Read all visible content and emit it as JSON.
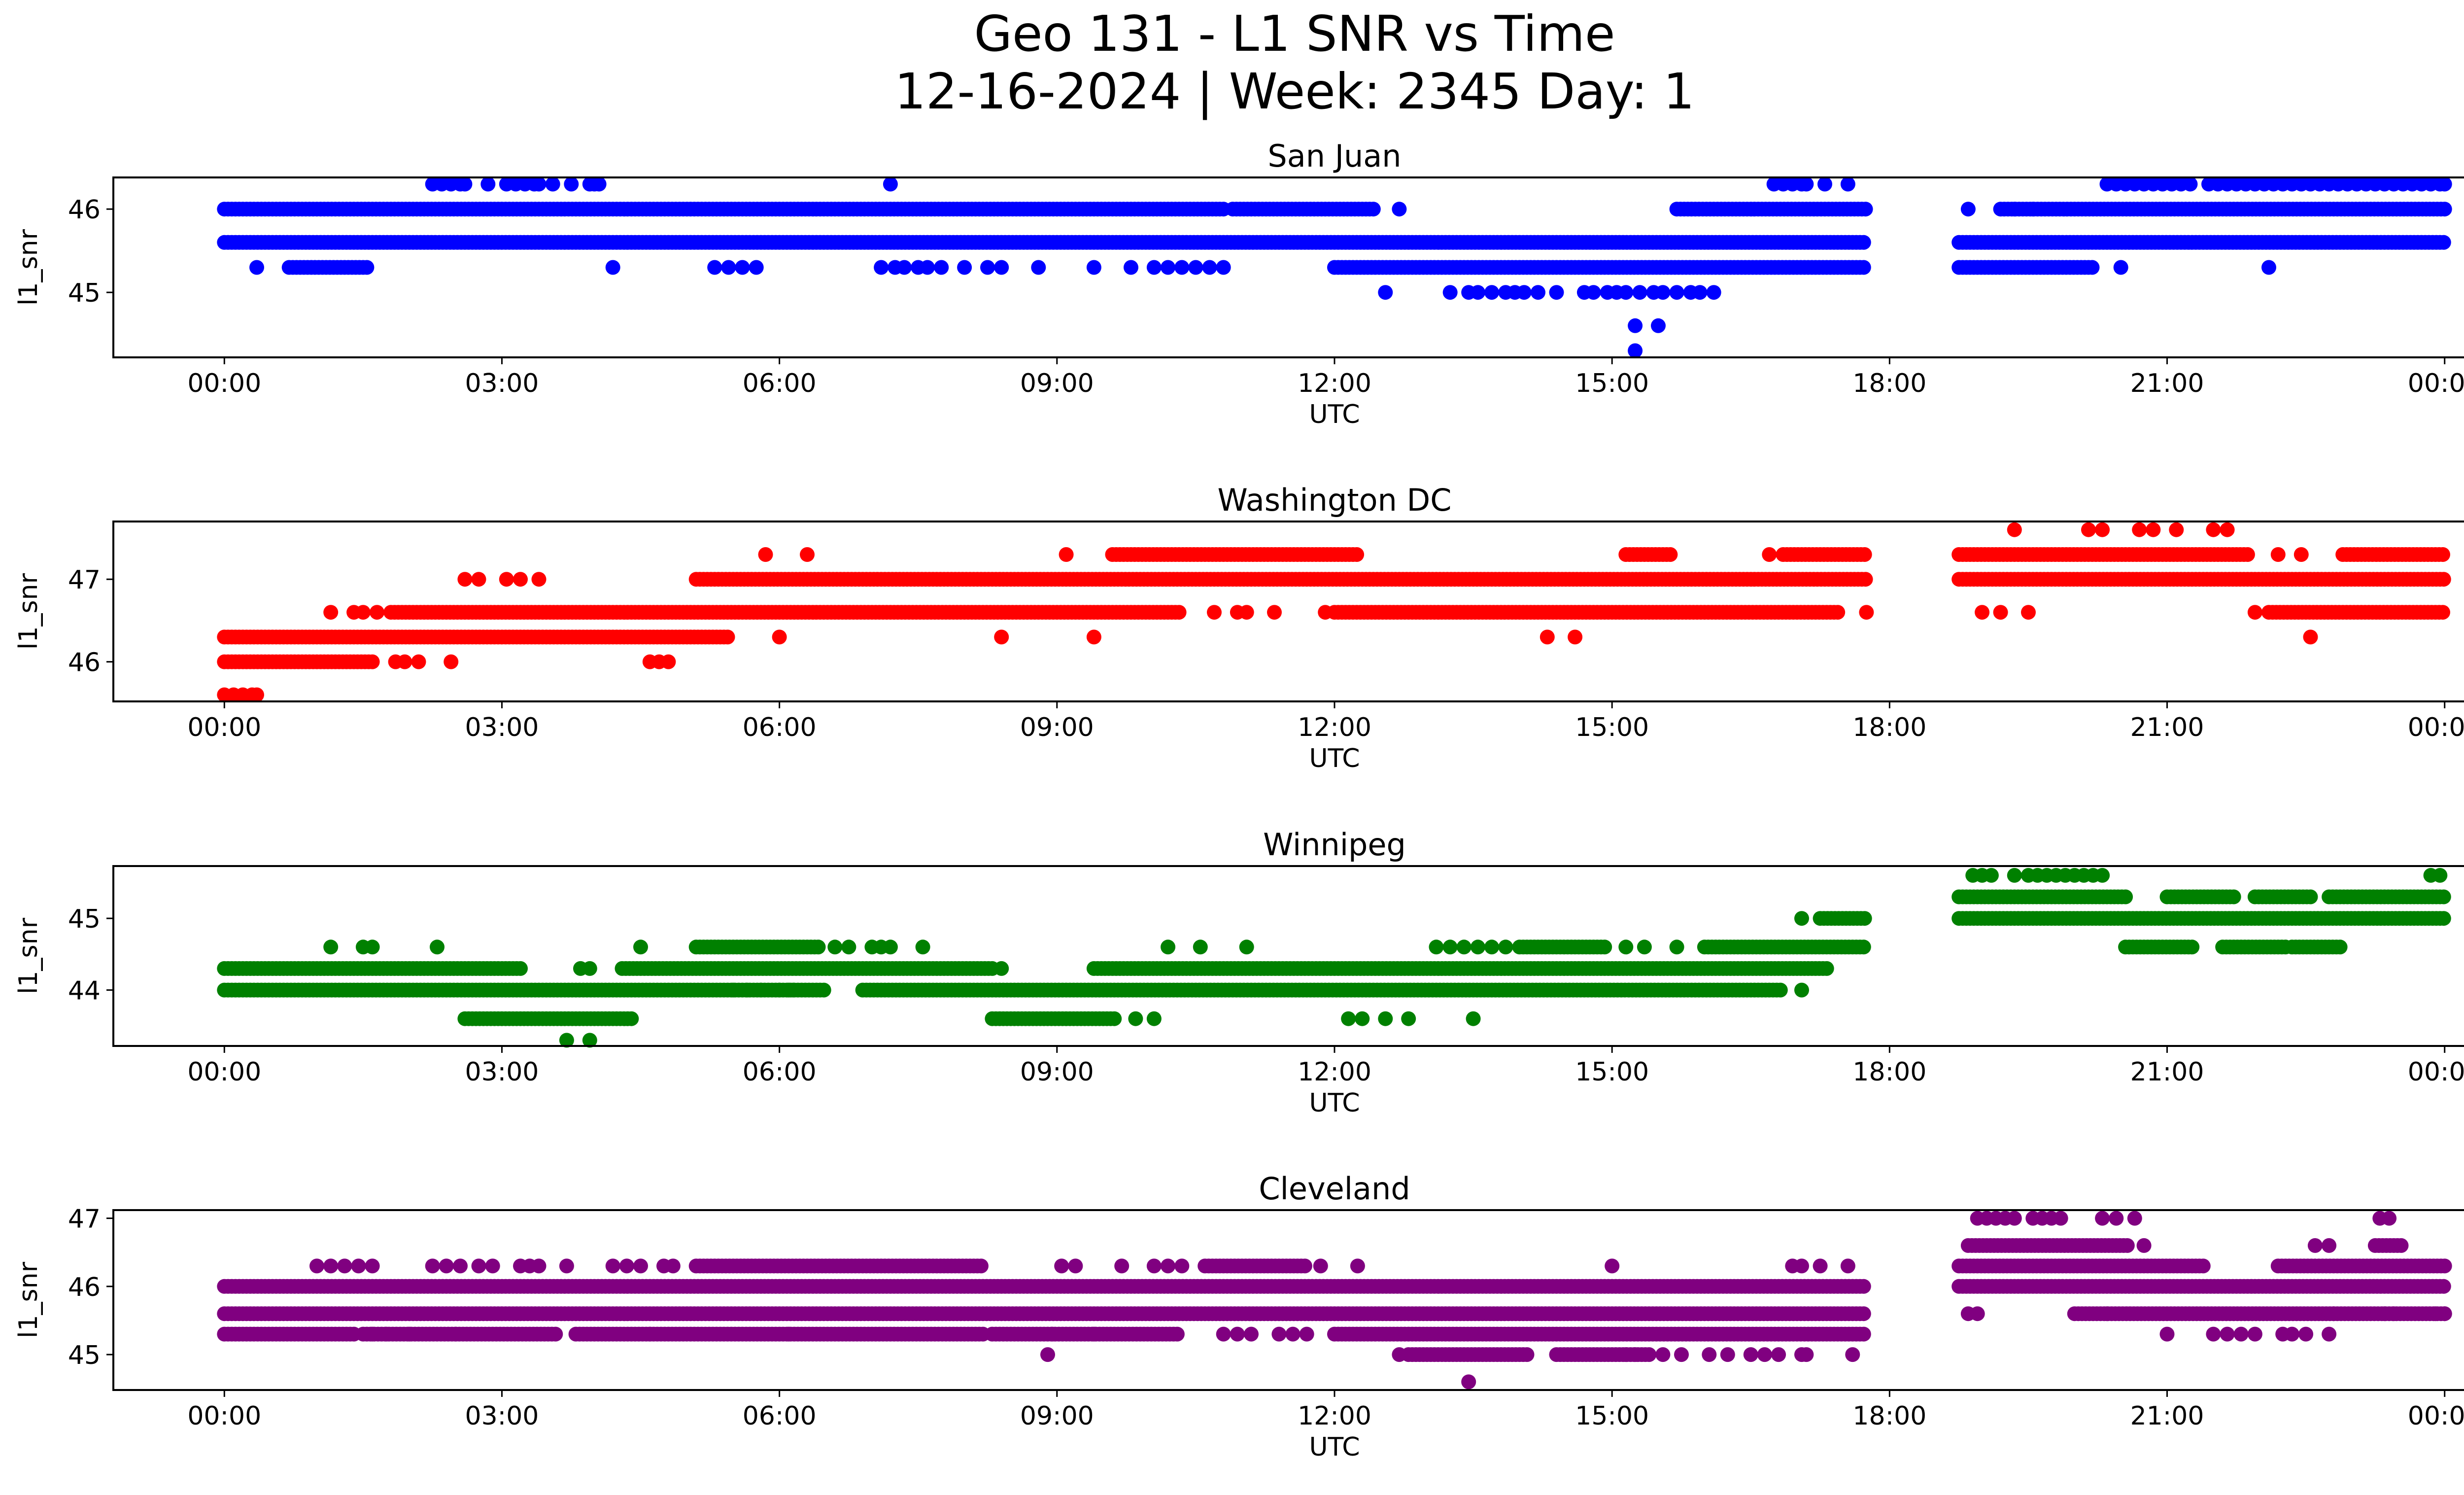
{
  "figure": {
    "title_line1": "Geo 131 - L1 SNR vs Time",
    "title_line2": "12-16-2024 | Week: 2345 Day: 1"
  },
  "chart_data": [
    {
      "type": "scatter",
      "title": "San Juan",
      "xlabel": "UTC",
      "ylabel": "l1_snr",
      "color": "#0000ff",
      "x_ticks": [
        "00:00",
        "03:00",
        "06:00",
        "09:00",
        "12:00",
        "15:00",
        "18:00",
        "21:00",
        "00:00"
      ],
      "x_tick_hours": [
        0,
        3,
        6,
        9,
        12,
        15,
        18,
        21,
        24
      ],
      "xlim_hours": [
        -1.2,
        25.2
      ],
      "y_ticks": [
        45,
        46
      ],
      "ylim": [
        44.22,
        46.38
      ],
      "series": [
        {
          "level": 46.3,
          "points": [
            2.25,
            2.35,
            2.45,
            2.55,
            2.6,
            2.85,
            3.05,
            3.15,
            3.25,
            3.35,
            3.4,
            3.55,
            3.75,
            3.95,
            4.0,
            4.05,
            7.2,
            16.75,
            16.85,
            16.95,
            17.05,
            17.1,
            17.3,
            17.55,
            20.35,
            20.45,
            20.55,
            20.65,
            20.75,
            20.85,
            20.95,
            21.05,
            21.15,
            21.25,
            21.45,
            21.55,
            21.65,
            21.75,
            21.85,
            21.95,
            22.05,
            22.15,
            22.25,
            22.35,
            22.45,
            22.55,
            22.65,
            22.75,
            22.85,
            22.95,
            23.05,
            23.15,
            23.25,
            23.35,
            23.45,
            23.55,
            23.65,
            23.75,
            23.85,
            23.95,
            24.0
          ]
        },
        {
          "level": 46.0,
          "ranges": [
            [
              0.0,
              10.8
            ],
            [
              10.9,
              12.45
            ],
            [
              15.7,
              17.75
            ],
            [
              19.2,
              24.0
            ]
          ],
          "points": [
            12.7,
            18.85,
            19.35,
            19.55
          ]
        },
        {
          "level": 45.6,
          "ranges": [
            [
              0.0,
              17.75
            ],
            [
              18.75,
              24.0
            ]
          ]
        },
        {
          "level": 45.3,
          "ranges": [
            [
              0.7,
              1.55
            ],
            [
              12.0,
              17.75
            ],
            [
              18.75,
              20.2
            ]
          ],
          "points": [
            0.35,
            4.2,
            5.3,
            5.45,
            5.6,
            5.75,
            7.1,
            7.25,
            7.35,
            7.5,
            7.6,
            7.75,
            8.0,
            8.25,
            8.4,
            8.8,
            9.4,
            9.8,
            10.05,
            10.2,
            10.35,
            10.5,
            10.65,
            10.8,
            20.5,
            22.1
          ]
        },
        {
          "level": 45.0,
          "points": [
            12.55,
            13.25,
            13.45,
            13.55,
            13.7,
            13.85,
            13.95,
            14.05,
            14.2,
            14.4,
            14.7,
            14.8,
            14.95,
            15.05,
            15.15,
            15.3,
            15.45,
            15.55,
            15.7,
            15.85,
            15.95,
            16.1
          ]
        },
        {
          "level": 44.6,
          "points": [
            15.25,
            15.5
          ]
        },
        {
          "level": 44.3,
          "points": [
            15.25
          ]
        }
      ]
    },
    {
      "type": "scatter",
      "title": "Washington DC",
      "xlabel": "UTC",
      "ylabel": "l1_snr",
      "color": "#ff0000",
      "x_ticks": [
        "00:00",
        "03:00",
        "06:00",
        "09:00",
        "12:00",
        "15:00",
        "18:00",
        "21:00",
        "00:00"
      ],
      "x_tick_hours": [
        0,
        3,
        6,
        9,
        12,
        15,
        18,
        21,
        24
      ],
      "xlim_hours": [
        -1.2,
        25.2
      ],
      "y_ticks": [
        46,
        47
      ],
      "ylim": [
        45.52,
        47.7
      ],
      "series": [
        {
          "level": 47.6,
          "points": [
            19.35,
            20.15,
            20.3,
            20.7,
            20.85,
            21.1,
            21.5,
            21.65
          ]
        },
        {
          "level": 47.3,
          "ranges": [
            [
              9.6,
              12.25
            ],
            [
              15.15,
              15.65
            ],
            [
              16.85,
              17.75
            ],
            [
              18.75,
              21.9
            ],
            [
              22.9,
              24.0
            ]
          ],
          "points": [
            5.85,
            6.3,
            9.1,
            16.7,
            22.2,
            22.45
          ]
        },
        {
          "level": 47.0,
          "ranges": [
            [
              5.1,
              17.75
            ],
            [
              18.75,
              24.0
            ]
          ],
          "points": [
            2.6,
            2.75,
            3.05,
            3.2,
            3.4
          ]
        },
        {
          "level": 46.6,
          "ranges": [
            [
              1.8,
              10.35
            ],
            [
              12.0,
              17.45
            ],
            [
              22.1,
              24.0
            ]
          ],
          "points": [
            1.15,
            1.4,
            1.5,
            1.65,
            10.7,
            10.95,
            11.05,
            11.35,
            11.9,
            17.75,
            19.0,
            19.2,
            19.5,
            21.95
          ]
        },
        {
          "level": 46.3,
          "ranges": [
            [
              0.0,
              5.45
            ]
          ],
          "points": [
            6.0,
            8.4,
            9.4,
            14.3,
            14.6,
            22.55
          ]
        },
        {
          "level": 46.0,
          "ranges": [
            [
              0.0,
              1.6
            ]
          ],
          "points": [
            1.85,
            1.95,
            2.1,
            2.45,
            4.6,
            4.7,
            4.8
          ]
        },
        {
          "level": 45.6,
          "points": [
            0.0,
            0.1,
            0.2,
            0.3,
            0.35
          ]
        }
      ]
    },
    {
      "type": "scatter",
      "title": "Winnipeg",
      "xlabel": "UTC",
      "ylabel": "l1_snr",
      "color": "#008000",
      "x_ticks": [
        "00:00",
        "03:00",
        "06:00",
        "09:00",
        "12:00",
        "15:00",
        "18:00",
        "21:00",
        "00:00"
      ],
      "x_tick_hours": [
        0,
        3,
        6,
        9,
        12,
        15,
        18,
        21,
        24
      ],
      "xlim_hours": [
        -1.2,
        25.2
      ],
      "y_ticks": [
        44,
        45
      ],
      "ylim": [
        43.22,
        45.73
      ],
      "series": [
        {
          "level": 45.6,
          "points": [
            18.9,
            19.0,
            19.1,
            19.35,
            19.5,
            19.6,
            19.7,
            19.8,
            19.9,
            20.0,
            20.1,
            20.2,
            20.3,
            23.85,
            23.95
          ]
        },
        {
          "level": 45.3,
          "ranges": [
            [
              18.75,
              20.55
            ],
            [
              21.0,
              21.75
            ],
            [
              21.95,
              22.55
            ],
            [
              22.75,
              24.0
            ]
          ]
        },
        {
          "level": 45.0,
          "ranges": [
            [
              17.25,
              17.75
            ],
            [
              18.75,
              24.0
            ]
          ],
          "points": [
            17.05
          ]
        },
        {
          "level": 44.6,
          "ranges": [
            [
              5.1,
              6.45
            ],
            [
              14.0,
              14.95
            ],
            [
              16.0,
              17.75
            ],
            [
              20.55,
              21.3
            ],
            [
              21.6,
              22.3
            ],
            [
              22.35,
              22.9
            ]
          ],
          "points": [
            1.15,
            1.5,
            1.6,
            2.3,
            4.5,
            6.6,
            6.75,
            7.0,
            7.1,
            7.2,
            7.55,
            10.2,
            10.55,
            11.05,
            13.1,
            13.25,
            13.4,
            13.55,
            13.7,
            13.85,
            15.15,
            15.35,
            15.7
          ]
        },
        {
          "level": 44.3,
          "ranges": [
            [
              0.0,
              3.2
            ],
            [
              4.3,
              8.3
            ],
            [
              9.4,
              17.35
            ]
          ],
          "points": [
            3.85,
            3.95,
            8.4
          ]
        },
        {
          "level": 44.0,
          "ranges": [
            [
              0.0,
              6.5
            ],
            [
              6.9,
              16.85
            ]
          ],
          "points": [
            5.5,
            5.65,
            5.8,
            6.0,
            6.1,
            6.15,
            17.05
          ]
        },
        {
          "level": 43.6,
          "ranges": [
            [
              2.6,
              4.4
            ],
            [
              8.3,
              9.65
            ]
          ],
          "points": [
            9.85,
            10.05,
            12.15,
            12.3,
            12.55,
            12.8,
            13.5
          ]
        },
        {
          "level": 43.3,
          "points": [
            3.7,
            3.95
          ]
        }
      ]
    },
    {
      "type": "scatter",
      "title": "Cleveland",
      "xlabel": "UTC",
      "ylabel": "l1_snr",
      "color": "#800080",
      "x_ticks": [
        "00:00",
        "03:00",
        "06:00",
        "09:00",
        "12:00",
        "15:00",
        "18:00",
        "21:00",
        "00:00"
      ],
      "x_tick_hours": [
        0,
        3,
        6,
        9,
        12,
        15,
        18,
        21,
        24
      ],
      "xlim_hours": [
        -1.2,
        25.2
      ],
      "y_ticks": [
        45,
        46,
        47
      ],
      "ylim": [
        44.48,
        47.12
      ],
      "series": [
        {
          "level": 47.0,
          "points": [
            18.95,
            19.05,
            19.15,
            19.25,
            19.35,
            19.55,
            19.65,
            19.75,
            19.85,
            20.3,
            20.45,
            20.65,
            23.3,
            23.4
          ]
        },
        {
          "level": 46.6,
          "ranges": [
            [
              18.85,
              20.6
            ],
            [
              23.25,
              23.55
            ]
          ],
          "points": [
            20.75,
            22.6,
            22.75
          ]
        },
        {
          "level": 46.3,
          "ranges": [
            [
              5.1,
              8.2
            ],
            [
              10.6,
              11.7
            ],
            [
              18.75,
              21.4
            ],
            [
              22.2,
              24.0
            ]
          ],
          "points": [
            1.0,
            1.15,
            1.3,
            1.45,
            1.6,
            2.25,
            2.4,
            2.55,
            2.75,
            2.9,
            3.2,
            3.3,
            3.4,
            3.7,
            4.2,
            4.35,
            4.5,
            4.75,
            4.85,
            9.05,
            9.2,
            9.7,
            10.05,
            10.2,
            10.35,
            11.85,
            12.25,
            15.0,
            16.95,
            17.05,
            17.25,
            17.55
          ]
        },
        {
          "level": 46.0,
          "ranges": [
            [
              0.0,
              17.75
            ],
            [
              18.75,
              24.0
            ]
          ]
        },
        {
          "level": 45.6,
          "ranges": [
            [
              0.0,
              17.75
            ],
            [
              20.0,
              24.0
            ]
          ],
          "points": [
            18.85,
            18.95,
            20.35,
            22.8,
            23.35,
            23.45,
            23.9,
            24.0
          ]
        },
        {
          "level": 45.3,
          "ranges": [
            [
              0.0,
              1.4
            ],
            [
              1.5,
              3.6
            ],
            [
              3.8,
              8.2
            ],
            [
              8.3,
              10.3
            ],
            [
              12.0,
              17.75
            ]
          ],
          "points": [
            1.6,
            1.75,
            2.0,
            2.5,
            4.6,
            6.1,
            8.95,
            9.4,
            10.8,
            10.95,
            11.1,
            11.4,
            11.55,
            11.7,
            21.0,
            21.5,
            21.65,
            21.8,
            21.95,
            22.25,
            22.35,
            22.5,
            22.75
          ]
        },
        {
          "level": 45.0,
          "ranges": [
            [
              12.8,
              14.1
            ],
            [
              14.4,
              15.4
            ]
          ],
          "points": [
            8.9,
            12.7,
            15.15,
            15.25,
            15.55,
            15.75,
            16.05,
            16.25,
            16.5,
            16.65,
            16.8,
            17.05,
            17.1,
            17.6
          ]
        },
        {
          "level": 44.6,
          "points": [
            13.45
          ]
        }
      ]
    }
  ]
}
